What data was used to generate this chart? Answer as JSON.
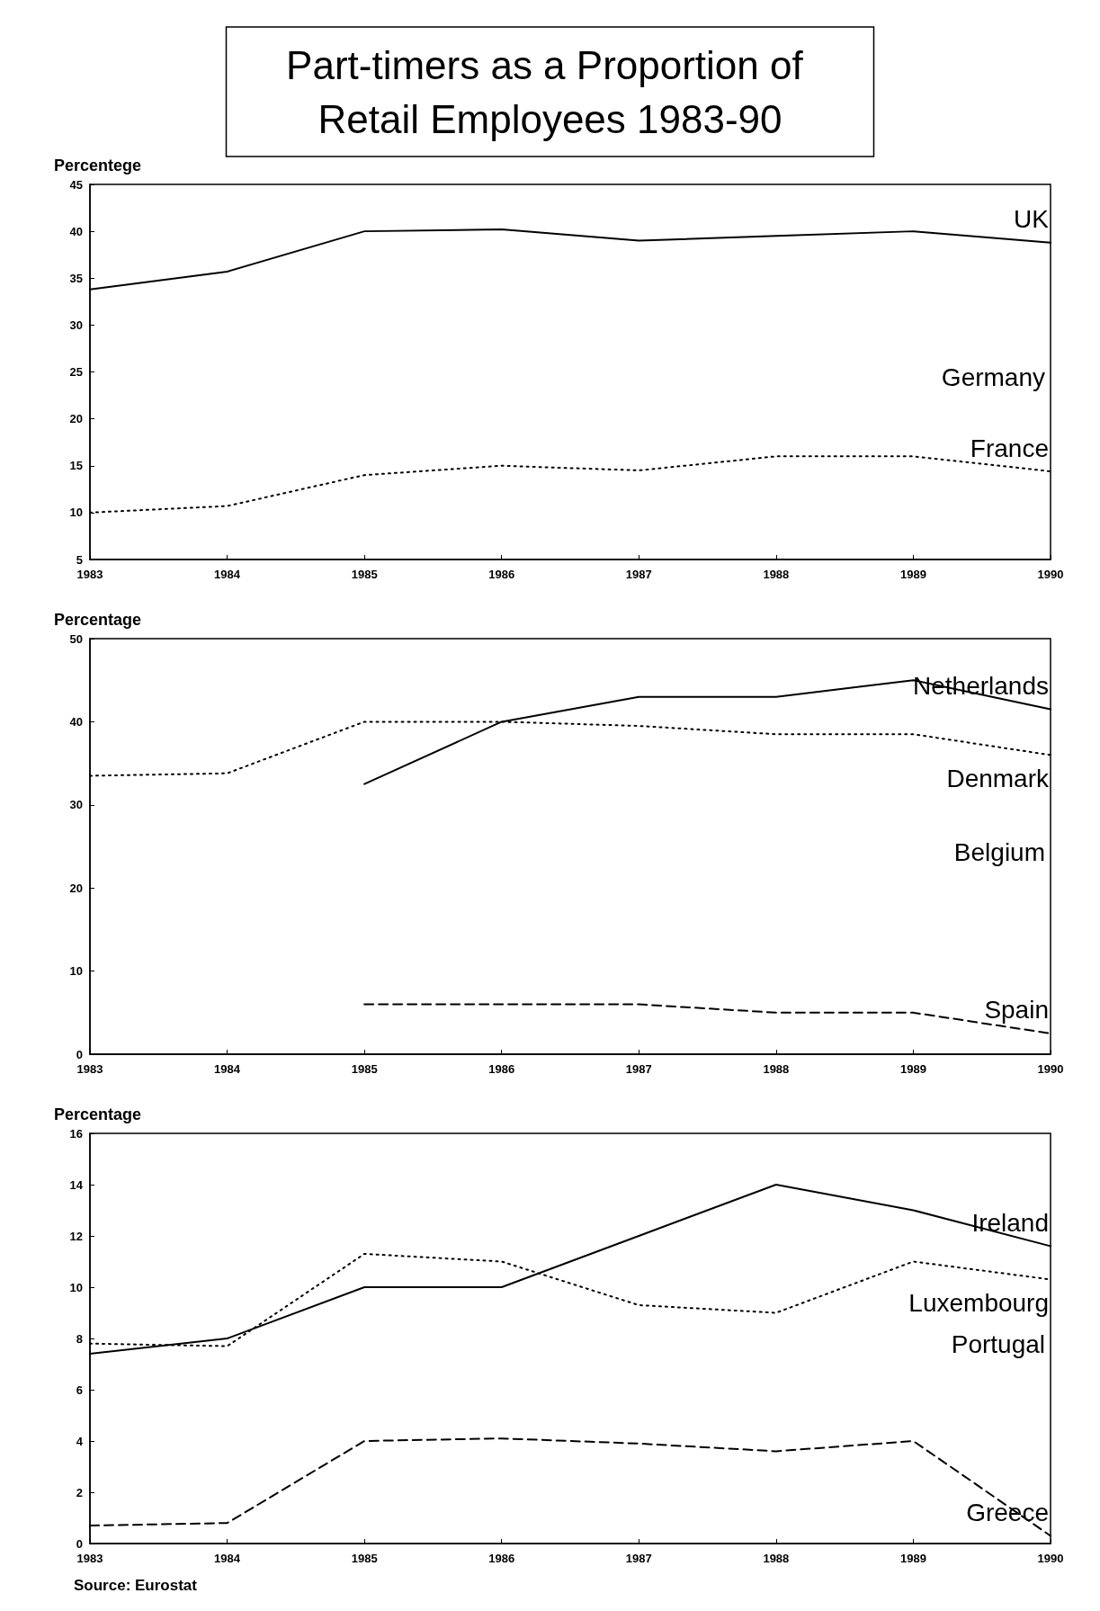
{
  "chart_data": [
    {
      "type": "line",
      "title": "Part-timers as a Proportion of Retail Employees 1983-90",
      "ylabel": "Percentege",
      "categories": [
        "1983",
        "1984",
        "1985",
        "1986",
        "1987",
        "1988",
        "1989",
        "1990"
      ],
      "ylim": [
        5,
        45
      ],
      "yticks": [
        5,
        10,
        15,
        20,
        25,
        30,
        35,
        40,
        45
      ],
      "grid": false,
      "legend": false,
      "marker": "none",
      "annotations": [
        "Germany"
      ],
      "series": [
        {
          "name": "UK",
          "color": "#000000",
          "line_style": "solid",
          "values": [
            33.8,
            35.7,
            40,
            40.2,
            39,
            39.5,
            40,
            38.8
          ]
        },
        {
          "name": "France",
          "color": "#000000",
          "line_style": "dotted",
          "values": [
            10,
            10.7,
            14,
            15,
            14.5,
            16,
            16,
            14.4
          ]
        }
      ]
    },
    {
      "type": "line",
      "ylabel": "Percentage",
      "categories": [
        "1983",
        "1984",
        "1985",
        "1986",
        "1987",
        "1988",
        "1989",
        "1990"
      ],
      "ylim": [
        0,
        50
      ],
      "yticks": [
        0,
        10,
        20,
        30,
        40,
        50
      ],
      "grid": false,
      "legend": false,
      "marker": "none",
      "annotations": [
        "Belgium"
      ],
      "series": [
        {
          "name": "Netherlands",
          "color": "#000000",
          "line_style": "solid",
          "values": [
            null,
            null,
            32.5,
            40,
            43,
            43,
            45,
            41.5
          ]
        },
        {
          "name": "Denmark",
          "color": "#000000",
          "line_style": "dotted",
          "values": [
            33.5,
            33.8,
            40,
            40,
            39.5,
            38.5,
            38.5,
            36
          ]
        },
        {
          "name": "Spain",
          "color": "#000000",
          "line_style": "dashed",
          "values": [
            null,
            null,
            6,
            6,
            6,
            5,
            5,
            2.5
          ]
        }
      ]
    },
    {
      "type": "line",
      "ylabel": "Percentage",
      "categories": [
        "1983",
        "1984",
        "1985",
        "1986",
        "1987",
        "1988",
        "1989",
        "1990"
      ],
      "ylim": [
        0,
        16
      ],
      "yticks": [
        0,
        2,
        4,
        6,
        8,
        10,
        12,
        14,
        16
      ],
      "grid": false,
      "legend": false,
      "marker": "none",
      "annotations": [
        "Portugal",
        "Source: Eurostat"
      ],
      "series": [
        {
          "name": "Ireland",
          "color": "#000000",
          "line_style": "solid",
          "values": [
            7.4,
            8,
            10,
            10,
            12,
            14,
            13,
            11.6
          ]
        },
        {
          "name": "Luxembourg",
          "color": "#000000",
          "line_style": "dotted",
          "values": [
            7.8,
            7.7,
            11.3,
            11,
            9.3,
            9,
            11,
            10.3
          ]
        },
        {
          "name": "Greece",
          "color": "#000000",
          "line_style": "dashed",
          "values": [
            0.7,
            0.8,
            4,
            4.1,
            3.9,
            3.6,
            4,
            0.3
          ]
        }
      ]
    }
  ]
}
